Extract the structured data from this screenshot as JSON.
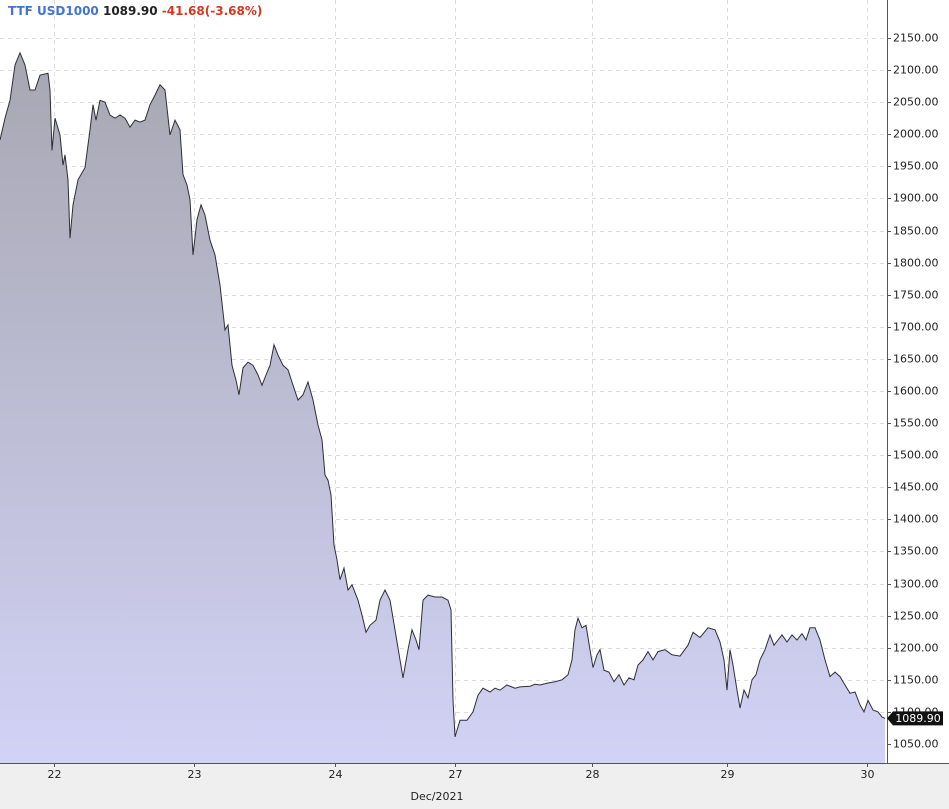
{
  "chart_data": {
    "type": "area",
    "title": "TTF USD1000",
    "last_price": "1089.90",
    "change": "-41.68(-3.68%)",
    "xlabel": "Dec/2021",
    "line_color": "#2e2e38",
    "fill_top": "#a7a7b2",
    "fill_bottom": "#d2d2f6",
    "grid": true,
    "x": [
      0,
      0.5,
      1,
      1.5,
      2,
      2.5,
      3,
      3.5,
      4,
      4.8,
      5,
      5.2,
      5.5,
      6,
      6.3,
      6.5,
      6.8,
      7,
      7.3,
      7.8,
      8.5,
      9,
      9.3,
      9.6,
      10,
      10.5,
      11,
      11.5,
      12,
      12.5,
      13,
      13.5,
      14,
      14.5,
      15,
      15.5,
      16,
      16.5,
      17,
      17.5,
      18,
      18.3,
      18.7,
      19,
      19.3,
      19.7,
      20.1,
      20.5,
      21,
      21.5,
      22,
      22.5,
      22.8,
      23.2,
      23.6,
      23.9,
      24.3,
      24.8,
      25.3,
      25.8,
      26.2,
      26.6,
      27,
      27.4,
      27.8,
      28.3,
      28.8,
      29.3,
      29.8,
      30.3,
      30.8,
      31.3,
      31.8,
      32.2,
      32.5,
      32.8,
      33.1,
      33.4,
      33.7,
      34,
      34.4,
      34.8,
      35.2,
      35.8,
      36.2,
      36.6,
      37,
      37.6,
      38,
      38.5,
      39,
      39.5,
      40,
      40.3,
      40.8,
      41.2,
      41.6,
      41.9,
      42.3,
      42.8,
      43.5,
      44.2,
      44.8,
      45.1,
      45.3,
      45.5,
      46,
      46.7,
      47.3,
      47.8,
      48.3,
      49,
      49.5,
      50,
      50.7,
      51.5,
      52,
      53,
      53.5,
      54,
      54.8,
      55.5,
      56.2,
      56.8,
      57.2,
      57.5,
      57.8,
      58.2,
      58.6,
      59,
      59.3,
      59.7,
      60,
      60.4,
      60.9,
      61.4,
      61.9,
      62.4,
      62.9,
      63.4,
      63.8,
      64.3,
      64.8,
      65.3,
      65.8,
      66.5,
      67.2,
      68,
      68.8,
      69.3,
      70,
      70.8,
      71.5,
      72,
      72.4,
      72.7,
      73,
      73.3,
      73.7,
      74,
      74.4,
      74.8,
      75.2,
      75.6,
      76,
      76.5,
      77,
      77.4,
      77.8,
      78.2,
      78.7,
      79.2,
      79.7,
      80.2,
      80.6,
      81,
      81.5,
      82,
      82.5,
      83,
      83.5,
      84,
      84.5,
      85,
      85.5,
      86,
      86.4,
      86.8,
      87.3,
      87.8,
      88.2,
      88.5
    ],
    "values": [
      1991,
      2025,
      2053,
      2108,
      2127,
      2108,
      2069,
      2069,
      2092,
      2095,
      2069,
      1975,
      2025,
      1999,
      1952,
      1968,
      1929,
      1838,
      1890,
      1929,
      1948,
      2007,
      2046,
      2022,
      2053,
      2050,
      2030,
      2025,
      2030,
      2025,
      2011,
      2022,
      2019,
      2022,
      2046,
      2061,
      2077,
      2069,
      1999,
      2022,
      2007,
      1937,
      1921,
      1898,
      1812,
      1867,
      1890,
      1874,
      1835,
      1812,
      1765,
      1695,
      1703,
      1640,
      1617,
      1594,
      1636,
      1645,
      1640,
      1625,
      1609,
      1625,
      1640,
      1672,
      1656,
      1640,
      1633,
      1609,
      1586,
      1594,
      1614,
      1586,
      1547,
      1524,
      1469,
      1461,
      1438,
      1360,
      1337,
      1306,
      1324,
      1290,
      1298,
      1274,
      1251,
      1224,
      1235,
      1243,
      1274,
      1290,
      1274,
      1228,
      1181,
      1153,
      1197,
      1228,
      1212,
      1197,
      1274,
      1282,
      1279,
      1279,
      1274,
      1259,
      1118,
      1061,
      1087,
      1087,
      1100,
      1126,
      1137,
      1131,
      1137,
      1134,
      1142,
      1137,
      1139,
      1140,
      1143,
      1142,
      1145,
      1147,
      1150,
      1158,
      1181,
      1228,
      1246,
      1231,
      1235,
      1197,
      1169,
      1189,
      1197,
      1165,
      1162,
      1147,
      1158,
      1142,
      1153,
      1150,
      1173,
      1181,
      1194,
      1181,
      1194,
      1197,
      1189,
      1187,
      1204,
      1224,
      1216,
      1231,
      1228,
      1209,
      1181,
      1134,
      1197,
      1173,
      1134,
      1106,
      1134,
      1122,
      1150,
      1158,
      1181,
      1197,
      1220,
      1204,
      1212,
      1220,
      1209,
      1220,
      1212,
      1222,
      1212,
      1231,
      1231,
      1212,
      1181,
      1155,
      1162,
      1155,
      1142,
      1129,
      1131,
      1111,
      1100,
      1118,
      1103,
      1100,
      1092,
      1089.9
    ],
    "xlim": [
      0,
      88.7
    ],
    "xticks": [
      {
        "value": 5.4,
        "label": "22"
      },
      {
        "value": 19.4,
        "label": "23"
      },
      {
        "value": 33.5,
        "label": "24"
      },
      {
        "value": 45.5,
        "label": "27"
      },
      {
        "value": 59.2,
        "label": "28"
      },
      {
        "value": 72.7,
        "label": "29"
      },
      {
        "value": 86.7,
        "label": "30"
      }
    ],
    "ylim": [
      1020.4,
      2209.2
    ],
    "yticks": [
      {
        "value": 1050,
        "label": "1050.00"
      },
      {
        "value": 1100,
        "label": "1100.00"
      },
      {
        "value": 1150,
        "label": "1150.00"
      },
      {
        "value": 1200,
        "label": "1200.00"
      },
      {
        "value": 1250,
        "label": "1250.00"
      },
      {
        "value": 1300,
        "label": "1300.00"
      },
      {
        "value": 1350,
        "label": "1350.00"
      },
      {
        "value": 1400,
        "label": "1400.00"
      },
      {
        "value": 1450,
        "label": "1450.00"
      },
      {
        "value": 1500,
        "label": "1500.00"
      },
      {
        "value": 1550,
        "label": "1550.00"
      },
      {
        "value": 1600,
        "label": "1600.00"
      },
      {
        "value": 1650,
        "label": "1650.00"
      },
      {
        "value": 1700,
        "label": "1700.00"
      },
      {
        "value": 1750,
        "label": "1750.00"
      },
      {
        "value": 1800,
        "label": "1800.00"
      },
      {
        "value": 1850,
        "label": "1850.00"
      },
      {
        "value": 1900,
        "label": "1900.00"
      },
      {
        "value": 1950,
        "label": "1950.00"
      },
      {
        "value": 2000,
        "label": "2000.00"
      },
      {
        "value": 2050,
        "label": "2050.00"
      },
      {
        "value": 2100,
        "label": "2100.00"
      },
      {
        "value": 2150,
        "label": "2150.00"
      }
    ]
  }
}
